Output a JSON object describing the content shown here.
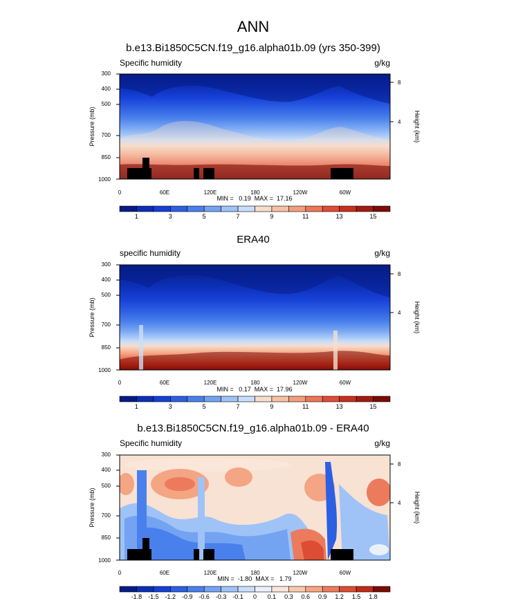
{
  "title": "ANN",
  "chart_data": [
    {
      "type": "heatmap",
      "panel_title": "b.e13.Bi1850C5CN.f19_g16.alpha01b.09 (yrs 350-399)",
      "variable": "Specific humidity",
      "units": "g/kg",
      "ylabel": "Pressure (mb)",
      "y2label": "Height (km)",
      "yticks": [
        "300",
        "400",
        "500",
        "700",
        "850",
        "1000"
      ],
      "y2ticks": [
        "8",
        "4"
      ],
      "xticks": [
        "0",
        "60E",
        "120E",
        "180",
        "120W",
        "60W"
      ],
      "min_max_text": "MIN =   0.19  MAX =  17.16",
      "min": 0.19,
      "max": 17.16,
      "colorbar_labels": [
        "1",
        "3",
        "5",
        "7",
        "9",
        "11",
        "13",
        "15"
      ],
      "colorbar_colors": [
        "#061b86",
        "#0b2fb5",
        "#163fd6",
        "#2d5fe3",
        "#4a80ec",
        "#74a3f2",
        "#9fc3f6",
        "#c9defa",
        "#f6ddcc",
        "#f7c0a4",
        "#f39e7d",
        "#ec7658",
        "#e04c36",
        "#c7301c",
        "#a31b10",
        "#7a0c06"
      ],
      "colorbar_level_indices": [
        1,
        3,
        5,
        7,
        9,
        11,
        13,
        15
      ]
    },
    {
      "type": "heatmap",
      "panel_title": "ERA40",
      "variable": "specific humidity",
      "units": "g/kg",
      "ylabel": "Pressure (mb)",
      "y2label": "Height (km)",
      "yticks": [
        "300",
        "400",
        "500",
        "700",
        "850",
        "1000"
      ],
      "y2ticks": [
        "8",
        "4"
      ],
      "xticks": [
        "0",
        "60E",
        "120E",
        "180",
        "120W",
        "60W"
      ],
      "min_max_text": "MIN =   0.17  MAX =  17.96",
      "min": 0.17,
      "max": 17.96,
      "colorbar_labels": [
        "1",
        "3",
        "5",
        "7",
        "9",
        "11",
        "13",
        "15"
      ],
      "colorbar_colors": [
        "#061b86",
        "#0b2fb5",
        "#163fd6",
        "#2d5fe3",
        "#4a80ec",
        "#74a3f2",
        "#9fc3f6",
        "#c9defa",
        "#f6ddcc",
        "#f7c0a4",
        "#f39e7d",
        "#ec7658",
        "#e04c36",
        "#c7301c",
        "#a31b10",
        "#7a0c06"
      ],
      "colorbar_level_indices": [
        1,
        3,
        5,
        7,
        9,
        11,
        13,
        15
      ]
    },
    {
      "type": "heatmap",
      "panel_title": "b.e13.Bi1850C5CN.f19_g16.alpha01b.09 - ERA40",
      "variable": "Specific humidity",
      "units": "g/kg",
      "ylabel": "Pressure (mb)",
      "y2label": "Height (km)",
      "yticks": [
        "300",
        "400",
        "500",
        "700",
        "850",
        "1000"
      ],
      "y2ticks": [
        "8",
        "4"
      ],
      "xticks": [
        "0",
        "60E",
        "120E",
        "180",
        "120W",
        "60W"
      ],
      "min_max_text": "MIN =  -1.80  MAX =   1.79",
      "min": -1.8,
      "max": 1.79,
      "colorbar_labels": [
        "-1.8",
        "-1.5",
        "-1.2",
        "-0.9",
        "-0.6",
        "-0.3",
        "-0.1",
        "0",
        "0.1",
        "0.3",
        "0.6",
        "0.9",
        "1.2",
        "1.5",
        "1.8"
      ],
      "colorbar_colors": [
        "#061b86",
        "#0b2fb5",
        "#163fd6",
        "#2d5fe3",
        "#4a80ec",
        "#74a3f2",
        "#9fc3f6",
        "#c9defa",
        "#eaf1fb",
        "#fbe6da",
        "#f7c9ae",
        "#f3a584",
        "#ec7a5c",
        "#dd4c34",
        "#c22a18",
        "#7a0c06"
      ],
      "colorbar_level_indices": [
        1,
        2,
        3,
        4,
        5,
        6,
        7,
        8,
        9,
        10,
        11,
        12,
        13,
        14,
        15
      ]
    }
  ]
}
